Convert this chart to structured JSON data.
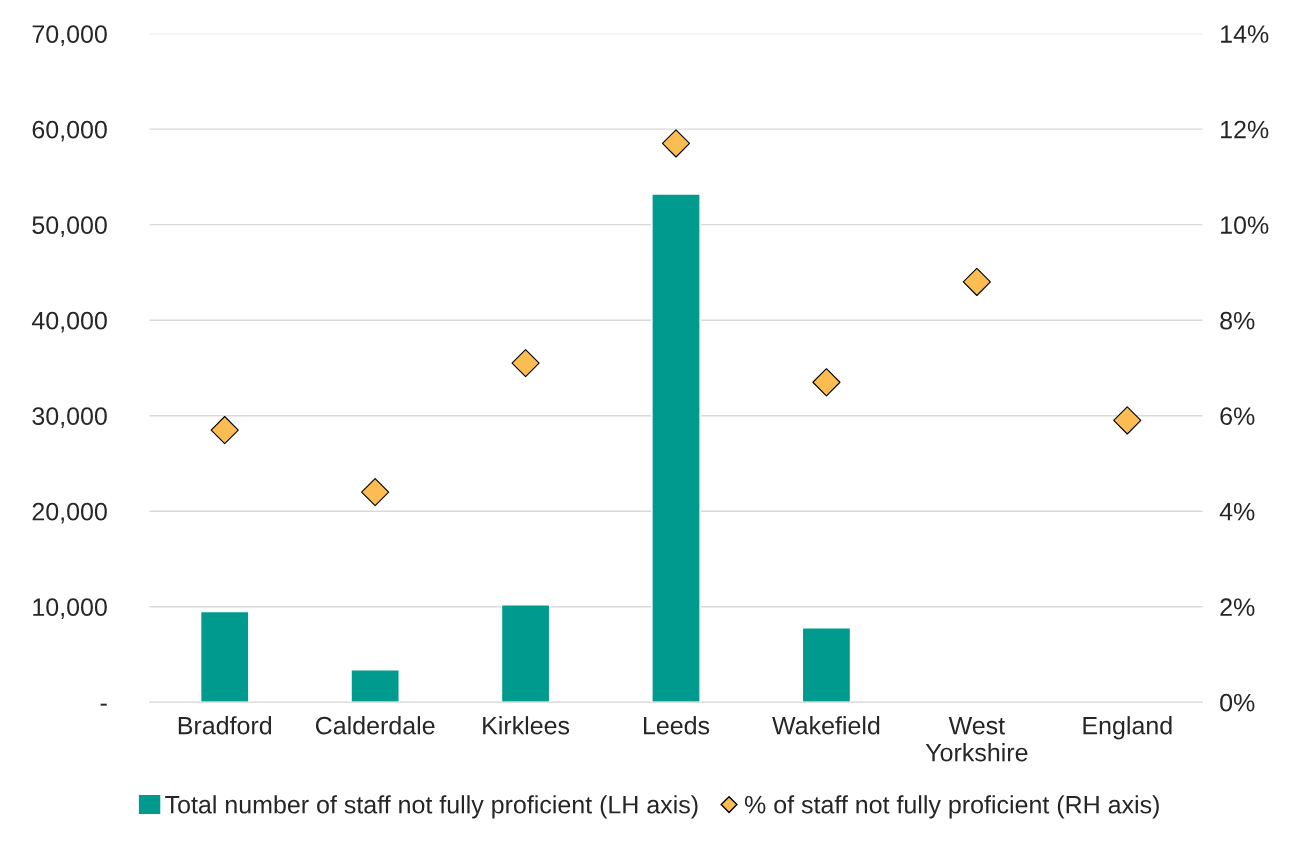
{
  "chart_data": {
    "type": "bar",
    "categories": [
      "Bradford",
      "Calderdale",
      "Kirklees",
      "Leeds",
      "Wakefield",
      "West\nYorkshire",
      "England"
    ],
    "series": [
      {
        "name": "Total number of staff not fully proficient (LH axis)",
        "color": "#009a8e",
        "values": [
          9500,
          3400,
          10200,
          53200,
          7800,
          null,
          null
        ]
      },
      {
        "name": "% of staff not fully proficient (RH axis)",
        "type": "scatter",
        "axis": "y2",
        "color": "#fbbd52",
        "marker": "diamond",
        "values": [
          5.7,
          4.4,
          7.1,
          11.7,
          6.7,
          8.8,
          5.9
        ]
      }
    ],
    "ylim": [
      0,
      70000
    ],
    "yticks": [
      {
        "value": 0,
        "label": "-"
      },
      {
        "value": 10000,
        "label": "10,000"
      },
      {
        "value": 20000,
        "label": "20,000"
      },
      {
        "value": 30000,
        "label": "30,000"
      },
      {
        "value": 40000,
        "label": "40,000"
      },
      {
        "value": 50000,
        "label": "50,000"
      },
      {
        "value": 60000,
        "label": "60,000"
      },
      {
        "value": 70000,
        "label": "70,000"
      }
    ],
    "y2lim": [
      0,
      14
    ],
    "y2ticks": [
      {
        "value": 0,
        "label": "0%"
      },
      {
        "value": 2,
        "label": "2%"
      },
      {
        "value": 4,
        "label": "4%"
      },
      {
        "value": 6,
        "label": "6%"
      },
      {
        "value": 8,
        "label": "8%"
      },
      {
        "value": 10,
        "label": "10%"
      },
      {
        "value": 12,
        "label": "12%"
      },
      {
        "value": 14,
        "label": "14%"
      }
    ],
    "grid": "y",
    "legend": "bottom"
  }
}
